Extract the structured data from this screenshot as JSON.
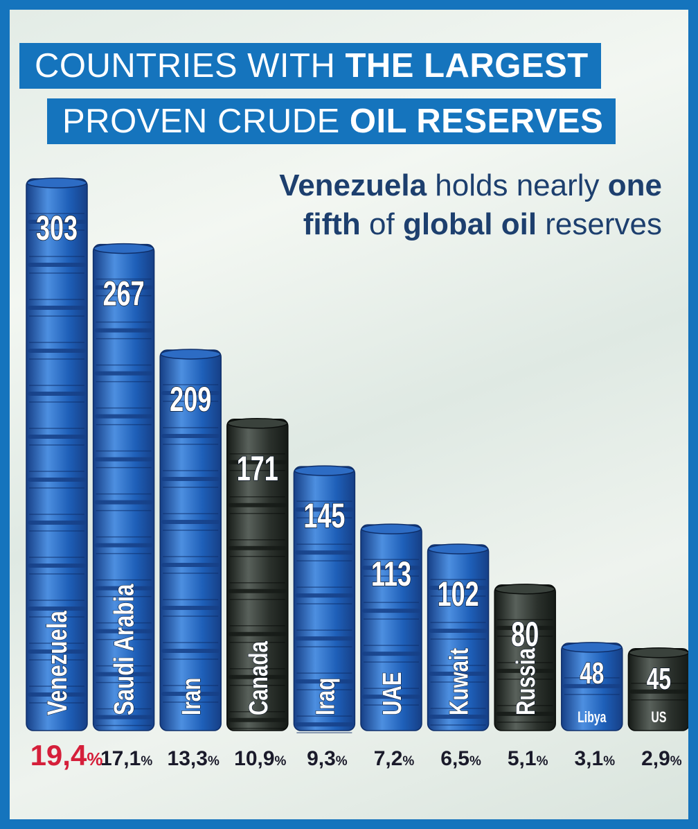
{
  "title": {
    "line1_normal": "COUNTRIES WITH ",
    "line1_bold": "THE LARGEST",
    "line2_normal": "PROVEN CRUDE ",
    "line2_bold": "OIL RESERVES"
  },
  "subtitle": {
    "p1_bold": "Venezuela",
    "p2": " holds nearly ",
    "p3_bold": "one",
    "p4_bold": "fifth",
    "p5": " of ",
    "p6_bold": "global oil",
    "p7": " reserves"
  },
  "colors": {
    "frame": "#1574bd",
    "blue_barrel": "#1e5fb8",
    "black_barrel": "#2b312c",
    "highlight_percent": "#d51f3a",
    "percent_text": "#1a1a2a"
  },
  "chart_data": {
    "type": "bar",
    "categories": [
      "Venezuela",
      "Saudi Arabia",
      "Iran",
      "Canada",
      "Iraq",
      "UAE",
      "Kuwait",
      "Russia",
      "Libya",
      "US"
    ],
    "values": [
      303,
      267,
      209,
      171,
      145,
      113,
      102,
      80,
      48,
      45
    ],
    "percent_labels": [
      "19,4%",
      "17,1%",
      "13,3%",
      "10,9%",
      "9,3%",
      "7,2%",
      "6,5%",
      "5,1%",
      "3,1%",
      "2,9%"
    ],
    "barrel_colors": [
      "blue",
      "blue",
      "blue",
      "black",
      "blue",
      "blue",
      "blue",
      "black",
      "blue",
      "black"
    ],
    "highlight_index": 0,
    "bar_style": "stacked oil barrels",
    "ylim": [
      0,
      303
    ]
  }
}
